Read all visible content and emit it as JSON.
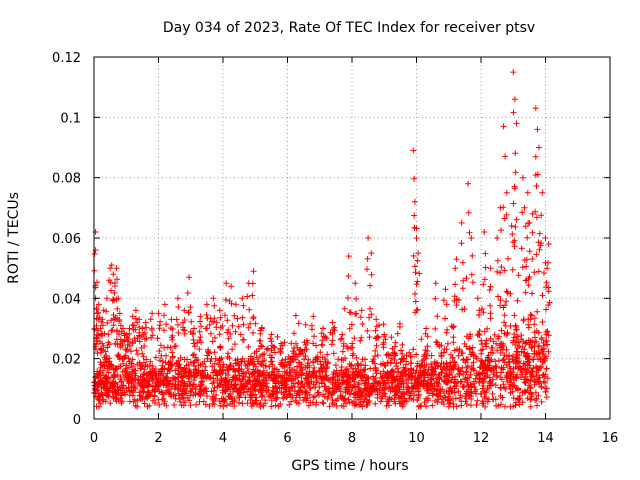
{
  "chart_data": {
    "type": "scatter",
    "title": "Day 034 of 2023, Rate Of TEC Index for receiver ptsv",
    "xlabel": "GPS time / hours",
    "ylabel": "ROTI / TECUs",
    "xlim": [
      0,
      16
    ],
    "ylim": [
      0,
      0.12
    ],
    "xticks": [
      0,
      2,
      4,
      6,
      8,
      10,
      12,
      14,
      16
    ],
    "yticks": [
      0,
      0.02,
      0.04,
      0.06,
      0.08,
      0.1,
      0.12
    ],
    "xtick_labels": [
      "0",
      "2",
      "4",
      "6",
      "8",
      "10",
      "12",
      "14",
      "16"
    ],
    "ytick_labels": [
      "0",
      "0.02",
      "0.04",
      "0.06",
      "0.08",
      "0.1",
      "0.12"
    ],
    "grid": true,
    "marker": "+",
    "marker_color": "#ff0000",
    "series": [
      {
        "name": "ROTI",
        "x": [
          0.05,
          0.05,
          0.05,
          0.1,
          0.15,
          0.2,
          0.25,
          0.3,
          0.4,
          0.5,
          0.55,
          0.6,
          0.65,
          0.7,
          0.75,
          0.8,
          0.9,
          1.0,
          1.1,
          1.2,
          1.3,
          1.4,
          1.5,
          1.6,
          1.8,
          2.0,
          2.2,
          2.4,
          2.6,
          2.8,
          2.95,
          3.1,
          3.3,
          3.5,
          3.7,
          3.9,
          4.1,
          4.25,
          4.4,
          4.6,
          4.8,
          4.95,
          5.2,
          5.5,
          5.8,
          6.1,
          6.4,
          6.6,
          6.8,
          7.1,
          7.4,
          7.7,
          7.9,
          8.1,
          8.3,
          8.5,
          8.6,
          8.75,
          9.0,
          9.3,
          9.6,
          9.9,
          9.95,
          10.0,
          10.05,
          10.3,
          10.6,
          10.9,
          11.2,
          11.4,
          11.6,
          11.7,
          11.9,
          12.1,
          12.3,
          12.5,
          12.6,
          12.7,
          12.8,
          12.95,
          13.0,
          13.05,
          13.1,
          13.3,
          13.35,
          13.45,
          13.5,
          13.6,
          13.7,
          13.75,
          13.8,
          13.9,
          14.0,
          14.05,
          14.1
        ],
        "y": [
          0.062,
          0.056,
          0.04,
          0.035,
          0.038,
          0.03,
          0.025,
          0.036,
          0.04,
          0.05,
          0.051,
          0.048,
          0.045,
          0.05,
          0.04,
          0.035,
          0.03,
          0.028,
          0.03,
          0.034,
          0.036,
          0.033,
          0.03,
          0.032,
          0.035,
          0.035,
          0.038,
          0.033,
          0.04,
          0.036,
          0.047,
          0.03,
          0.034,
          0.038,
          0.04,
          0.036,
          0.045,
          0.044,
          0.038,
          0.04,
          0.045,
          0.049,
          0.03,
          0.028,
          0.025,
          0.02,
          0.023,
          0.026,
          0.034,
          0.03,
          0.032,
          0.028,
          0.054,
          0.045,
          0.036,
          0.06,
          0.055,
          0.033,
          0.028,
          0.022,
          0.02,
          0.089,
          0.072,
          0.06,
          0.055,
          0.03,
          0.045,
          0.043,
          0.05,
          0.065,
          0.078,
          0.06,
          0.04,
          0.062,
          0.05,
          0.06,
          0.07,
          0.097,
          0.075,
          0.064,
          0.115,
          0.106,
          0.098,
          0.08,
          0.07,
          0.075,
          0.065,
          0.068,
          0.103,
          0.096,
          0.09,
          0.075,
          0.06,
          0.05,
          0.058
        ]
      }
    ],
    "baseline_band": {
      "description": "dense cloud of points between 0.005 and 0.025 for all times 0 to 14.1 h",
      "x_range": [
        0,
        14.1
      ],
      "y_range": [
        0.004,
        0.025
      ]
    }
  },
  "colors": {
    "points": "#ff0000",
    "grid": "#a0a0a0",
    "axes": "#000000",
    "background": "#ffffff"
  }
}
